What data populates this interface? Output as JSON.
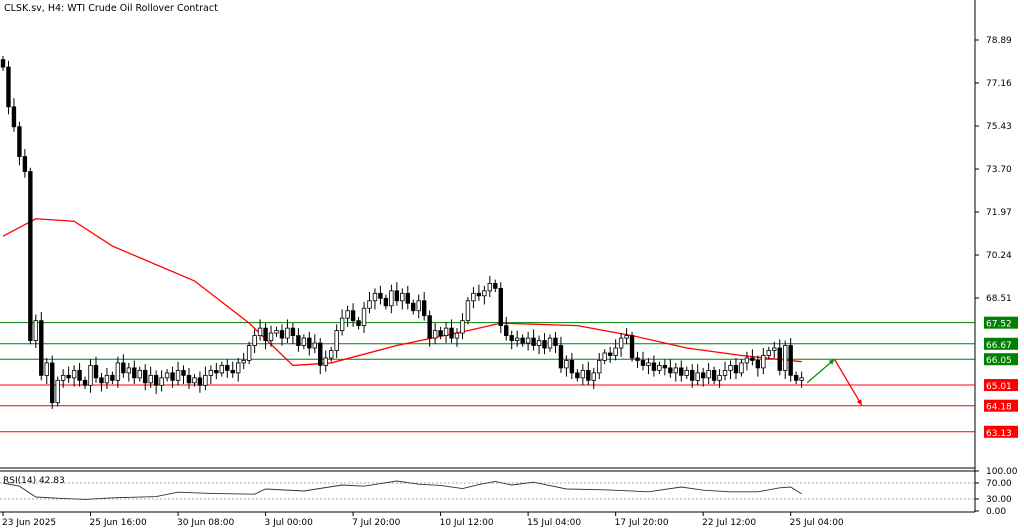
{
  "header": {
    "title": "CLSK.sv, H4:  WTI Crude Oil Rollover Contract"
  },
  "colors": {
    "bull": "#ffffff",
    "bear": "#000000",
    "ma": "#ff0000",
    "support": "#ff0000",
    "resistance": "#008000",
    "grid_label_text": "#ffffff"
  },
  "chart_data": {
    "type": "candlestick",
    "symbol": "CLSK.sv",
    "timeframe": "H4",
    "price_ticks": [
      "78.89",
      "77.16",
      "75.43",
      "73.70",
      "71.97",
      "70.24",
      "68.51"
    ],
    "ylim": [
      62.35,
      80.5
    ],
    "time_labels": [
      {
        "index": 0,
        "label": "23 Jun 2025"
      },
      {
        "index": 16,
        "label": "25 Jun 16:00"
      },
      {
        "index": 32,
        "label": "30 Jun 08:00"
      },
      {
        "index": 48,
        "label": "3 Jul 00:00"
      },
      {
        "index": 64,
        "label": "7 Jul 20:00"
      },
      {
        "index": 80,
        "label": "10 Jul 12:00"
      },
      {
        "index": 96,
        "label": "15 Jul 04:00"
      },
      {
        "index": 112,
        "label": "17 Jul 20:00"
      },
      {
        "index": 128,
        "label": "22 Jul 12:00"
      },
      {
        "index": 144,
        "label": "25 Jul 04:00"
      }
    ],
    "closes": [
      77.8,
      76.2,
      75.4,
      74.2,
      73.6,
      66.8,
      67.6,
      65.4,
      65.9,
      64.3,
      65.2,
      65.4,
      65.3,
      65.6,
      65.2,
      65.0,
      65.8,
      65.3,
      65.1,
      65.4,
      65.2,
      65.9,
      65.5,
      65.7,
      65.3,
      65.6,
      65.1,
      65.4,
      65.0,
      65.3,
      65.5,
      65.2,
      65.6,
      65.4,
      65.1,
      65.3,
      65.0,
      65.4,
      65.6,
      65.5,
      65.8,
      65.6,
      65.5,
      65.9,
      66.0,
      66.6,
      67.0,
      67.3,
      66.8,
      67.1,
      67.2,
      66.9,
      67.3,
      67.0,
      66.6,
      66.9,
      66.5,
      66.7,
      65.8,
      66.1,
      66.4,
      67.2,
      67.7,
      68.0,
      67.6,
      67.4,
      68.1,
      68.4,
      68.7,
      68.5,
      68.2,
      68.8,
      68.4,
      68.7,
      68.3,
      68.0,
      68.4,
      67.8,
      66.9,
      67.2,
      67.0,
      67.3,
      66.9,
      67.1,
      67.6,
      68.4,
      68.7,
      68.6,
      68.8,
      69.1,
      68.9,
      67.4,
      67.0,
      66.8,
      66.9,
      66.7,
      66.9,
      66.6,
      66.8,
      66.5,
      66.9,
      66.6,
      65.7,
      66.0,
      65.5,
      65.3,
      65.6,
      65.2,
      65.5,
      66.0,
      66.3,
      66.2,
      66.5,
      66.9,
      67.0,
      66.1,
      66.0,
      65.8,
      65.9,
      65.6,
      65.8,
      65.7,
      65.5,
      65.7,
      65.4,
      65.6,
      65.2,
      65.5,
      65.3,
      65.6,
      65.2,
      65.4,
      65.6,
      65.8,
      65.5,
      65.9,
      66.1,
      66.0,
      65.7,
      66.2,
      66.4,
      66.5,
      65.6,
      66.6,
      65.4,
      65.2,
      65.3
    ],
    "moving_average": [
      [
        0,
        71.0
      ],
      [
        6,
        71.7
      ],
      [
        13,
        71.6
      ],
      [
        20,
        70.6
      ],
      [
        35,
        69.2
      ],
      [
        45,
        67.5
      ],
      [
        53,
        65.8
      ],
      [
        60,
        65.9
      ],
      [
        72,
        66.6
      ],
      [
        85,
        67.2
      ],
      [
        91,
        67.5
      ],
      [
        105,
        67.4
      ],
      [
        115,
        67.0
      ],
      [
        125,
        66.5
      ],
      [
        135,
        66.2
      ],
      [
        146,
        65.95
      ]
    ],
    "levels": [
      {
        "price": 67.52,
        "label": "67.52",
        "kind": "resistance"
      },
      {
        "price": 66.67,
        "label": "66.67",
        "kind": "resistance"
      },
      {
        "price": 66.05,
        "label": "66.05",
        "kind": "resistance"
      },
      {
        "price": 65.01,
        "label": "65.01",
        "kind": "support"
      },
      {
        "price": 64.18,
        "label": "64.18",
        "kind": "support"
      },
      {
        "price": 63.13,
        "label": "63.13",
        "kind": "support"
      }
    ],
    "scenario_arrows": [
      {
        "from": [
          147,
          65.1
        ],
        "to": [
          152,
          66.05
        ],
        "color": "green"
      },
      {
        "from": [
          152,
          66.05
        ],
        "to": [
          157,
          64.2
        ],
        "color": "red"
      }
    ],
    "rsi": {
      "label": "RSI(14) 42.83",
      "ticks": [
        "100.00",
        "70.00",
        "30.00",
        "0.00"
      ],
      "levels": [
        70,
        30
      ],
      "points": [
        [
          0,
          70
        ],
        [
          3,
          62
        ],
        [
          6,
          35
        ],
        [
          10,
          32
        ],
        [
          15,
          29
        ],
        [
          20,
          33
        ],
        [
          28,
          36
        ],
        [
          32,
          47
        ],
        [
          38,
          44
        ],
        [
          46,
          42
        ],
        [
          48,
          55
        ],
        [
          55,
          50
        ],
        [
          62,
          65
        ],
        [
          66,
          62
        ],
        [
          72,
          75
        ],
        [
          76,
          67
        ],
        [
          80,
          64
        ],
        [
          84,
          56
        ],
        [
          87,
          66
        ],
        [
          90,
          74
        ],
        [
          93,
          65
        ],
        [
          97,
          72
        ],
        [
          103,
          55
        ],
        [
          110,
          53
        ],
        [
          118,
          48
        ],
        [
          124,
          60
        ],
        [
          128,
          52
        ],
        [
          133,
          48
        ],
        [
          138,
          48
        ],
        [
          142,
          58
        ],
        [
          144,
          60
        ],
        [
          146,
          42.83
        ]
      ]
    }
  }
}
